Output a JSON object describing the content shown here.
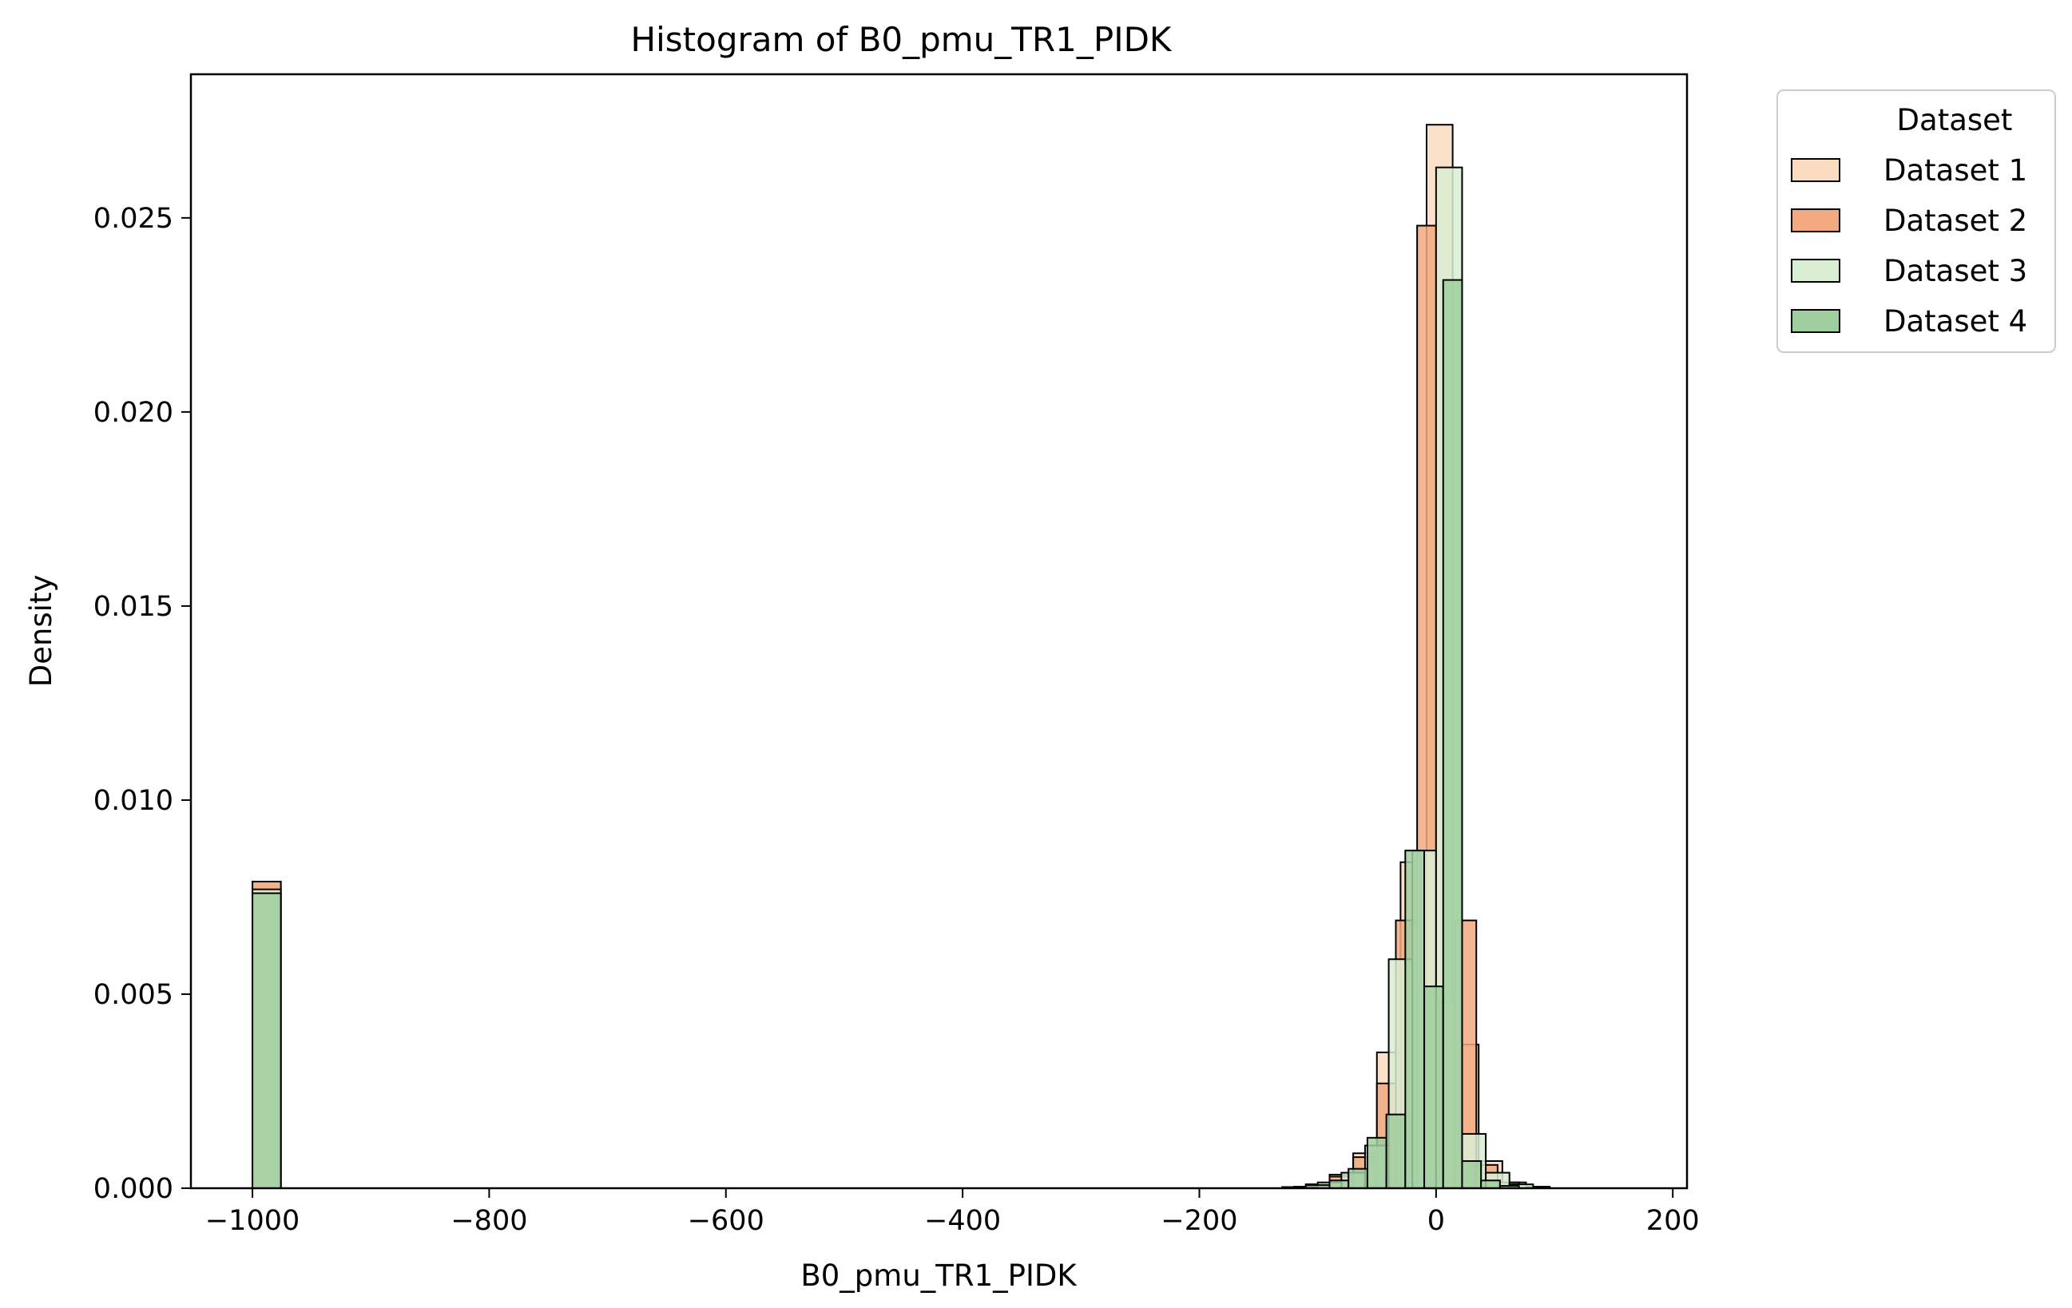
{
  "chart_data": {
    "type": "bar",
    "title": "Histogram of B0_pmu_TR1_PIDK",
    "xlabel": "B0_pmu_TR1_PIDK",
    "ylabel": "Density",
    "xlim": [
      -1052,
      212
    ],
    "ylim": [
      0,
      0.0287
    ],
    "xticks": [
      -1000,
      -800,
      -600,
      -400,
      -200,
      0,
      200
    ],
    "yticks": [
      0.0,
      0.005,
      0.01,
      0.015,
      0.02,
      0.025
    ],
    "xtick_labels": [
      "−1000",
      "−800",
      "−600",
      "−400",
      "−200",
      "0",
      "200"
    ],
    "ytick_labels": [
      "0.000",
      "0.005",
      "0.010",
      "0.015",
      "0.020",
      "0.025"
    ],
    "grid": false,
    "legend": {
      "title": "Dataset",
      "placement": "outside-top-right"
    },
    "series": [
      {
        "name": "Dataset 1",
        "color": "#fbdcc1",
        "bins": [
          {
            "x0": -1000,
            "x1": -976,
            "y": 0.0079
          },
          {
            "x0": -130,
            "x1": -110,
            "y": 3e-05
          },
          {
            "x0": -110,
            "x1": -90,
            "y": 0.0001
          },
          {
            "x0": -90,
            "x1": -70,
            "y": 0.00035
          },
          {
            "x0": -70,
            "x1": -50,
            "y": 0.0009
          },
          {
            "x0": -50,
            "x1": -30,
            "y": 0.0035
          },
          {
            "x0": -30,
            "x1": -8,
            "y": 0.0084
          },
          {
            "x0": -8,
            "x1": 14,
            "y": 0.0274
          },
          {
            "x0": 14,
            "x1": 36,
            "y": 0.0037
          },
          {
            "x0": 36,
            "x1": 56,
            "y": 0.0007
          },
          {
            "x0": 56,
            "x1": 76,
            "y": 0.00015
          },
          {
            "x0": 76,
            "x1": 96,
            "y": 4e-05
          }
        ]
      },
      {
        "name": "Dataset 2",
        "color": "#f2a97f",
        "bins": [
          {
            "x0": -1000,
            "x1": -976,
            "y": 0.0079
          },
          {
            "x0": -130,
            "x1": -110,
            "y": 3e-05
          },
          {
            "x0": -110,
            "x1": -90,
            "y": 0.0001
          },
          {
            "x0": -90,
            "x1": -70,
            "y": 0.0003
          },
          {
            "x0": -70,
            "x1": -50,
            "y": 0.0008
          },
          {
            "x0": -50,
            "x1": -34,
            "y": 0.0027
          },
          {
            "x0": -34,
            "x1": -16,
            "y": 0.0069
          },
          {
            "x0": -16,
            "x1": 0,
            "y": 0.0248
          },
          {
            "x0": 0,
            "x1": 16,
            "y": 0.0048
          },
          {
            "x0": 16,
            "x1": 34,
            "y": 0.0069
          },
          {
            "x0": 34,
            "x1": 52,
            "y": 0.0006
          },
          {
            "x0": 52,
            "x1": 70,
            "y": 0.00015
          }
        ]
      },
      {
        "name": "Dataset 3",
        "color": "#d9edd3",
        "bins": [
          {
            "x0": -1000,
            "x1": -976,
            "y": 0.0077
          },
          {
            "x0": -120,
            "x1": -100,
            "y": 4e-05
          },
          {
            "x0": -100,
            "x1": -80,
            "y": 0.00015
          },
          {
            "x0": -80,
            "x1": -60,
            "y": 0.0004
          },
          {
            "x0": -60,
            "x1": -40,
            "y": 0.0011
          },
          {
            "x0": -40,
            "x1": -20,
            "y": 0.0059
          },
          {
            "x0": -20,
            "x1": 0,
            "y": 0.0087
          },
          {
            "x0": 0,
            "x1": 22,
            "y": 0.0263
          },
          {
            "x0": 22,
            "x1": 42,
            "y": 0.0014
          },
          {
            "x0": 42,
            "x1": 62,
            "y": 0.0004
          },
          {
            "x0": 62,
            "x1": 82,
            "y": 0.0001
          }
        ]
      },
      {
        "name": "Dataset 4",
        "color": "#9fcf9f",
        "bins": [
          {
            "x0": -1000,
            "x1": -976,
            "y": 0.0076
          },
          {
            "x0": -110,
            "x1": -90,
            "y": 8e-05
          },
          {
            "x0": -90,
            "x1": -74,
            "y": 0.0002
          },
          {
            "x0": -74,
            "x1": -58,
            "y": 0.0005
          },
          {
            "x0": -58,
            "x1": -42,
            "y": 0.0013
          },
          {
            "x0": -42,
            "x1": -26,
            "y": 0.0019
          },
          {
            "x0": -26,
            "x1": -10,
            "y": 0.0087
          },
          {
            "x0": -10,
            "x1": 6,
            "y": 0.0052
          },
          {
            "x0": 6,
            "x1": 22,
            "y": 0.0234
          },
          {
            "x0": 22,
            "x1": 38,
            "y": 0.0007
          },
          {
            "x0": 38,
            "x1": 54,
            "y": 0.0002
          },
          {
            "x0": 54,
            "x1": 70,
            "y": 6e-05
          }
        ]
      }
    ]
  }
}
